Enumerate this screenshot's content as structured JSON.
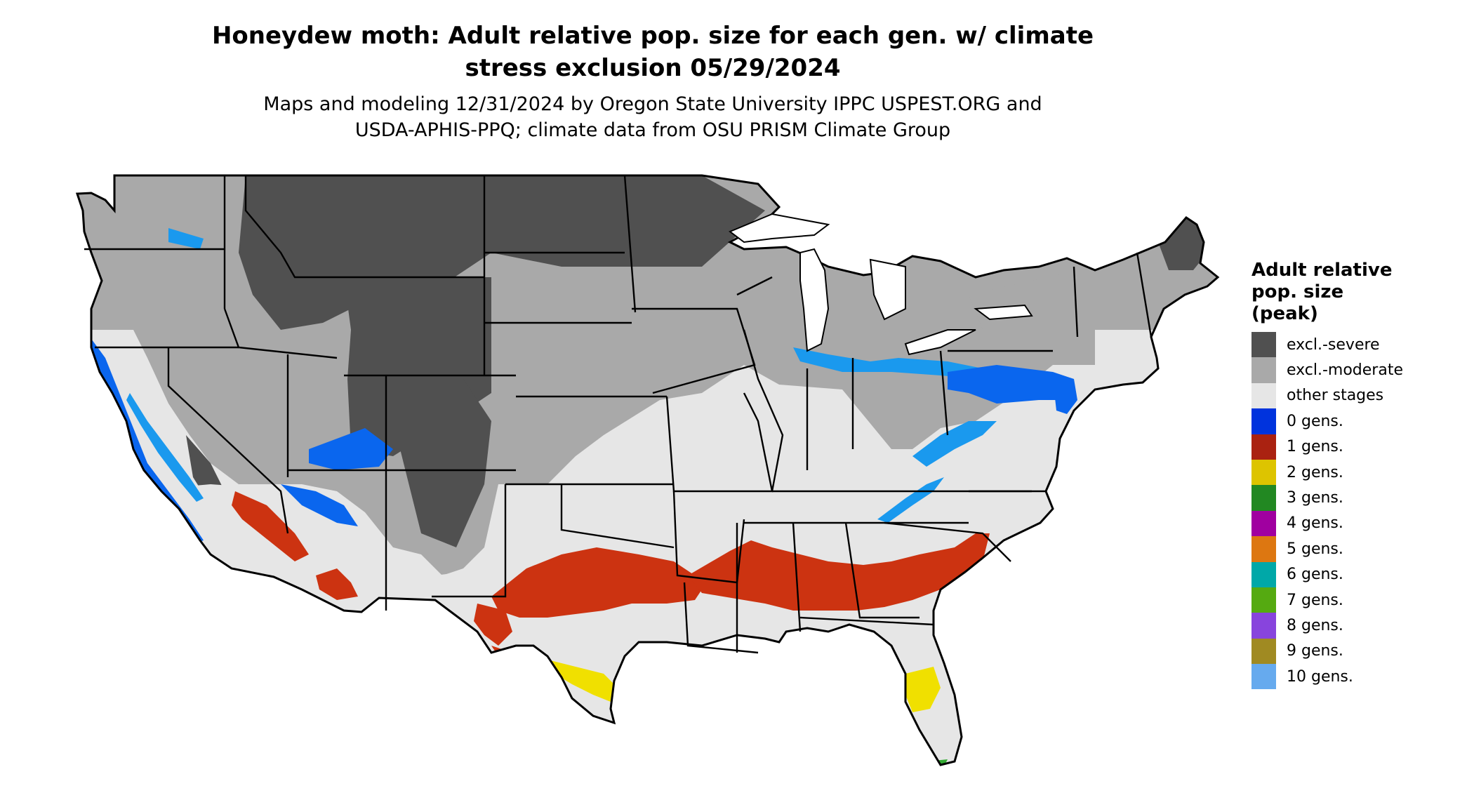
{
  "title": {
    "line1": "Honeydew moth: Adult relative pop. size for each gen. w/ climate",
    "line2": "stress exclusion 05/29/2024"
  },
  "subtitle": {
    "line1": "Maps and modeling 12/31/2024 by Oregon State University IPPC USPEST.ORG and",
    "line2": "USDA-APHIS-PPQ; climate data from OSU PRISM Climate Group"
  },
  "legend": {
    "title_lines": [
      "Adult relative",
      "pop. size",
      "(peak)"
    ],
    "items": [
      {
        "label": "excl.-severe",
        "color": "#505050"
      },
      {
        "label": "excl.-moderate",
        "color": "#a9a9a9"
      },
      {
        "label": "other stages",
        "color": "#e6e6e6"
      },
      {
        "label": "0 gens.",
        "color": "#0033dd"
      },
      {
        "label": "1 gens.",
        "color": "#aa2211"
      },
      {
        "label": "2 gens.",
        "color": "#ddc400"
      },
      {
        "label": "3 gens.",
        "color": "#228822"
      },
      {
        "label": "4 gens.",
        "color": "#a000a0"
      },
      {
        "label": "5 gens.",
        "color": "#dd7711"
      },
      {
        "label": "6 gens.",
        "color": "#00a8a8"
      },
      {
        "label": "7 gens.",
        "color": "#55aa11"
      },
      {
        "label": "8 gens.",
        "color": "#8844dd"
      },
      {
        "label": "9 gens.",
        "color": "#a08a22"
      },
      {
        "label": "10 gens.",
        "color": "#66aaee"
      }
    ]
  },
  "map": {
    "region": "contiguous-united-states",
    "colors": {
      "severe": "#505050",
      "moderate": "#a9a9a9",
      "other": "#e6e6e6",
      "blue": "#0a66ee",
      "blue_light": "#1a99ee",
      "red": "#cc3311",
      "red_dark": "#aa2211",
      "yellow": "#f0e000",
      "green": "#33aa33",
      "outline": "#000000"
    }
  }
}
